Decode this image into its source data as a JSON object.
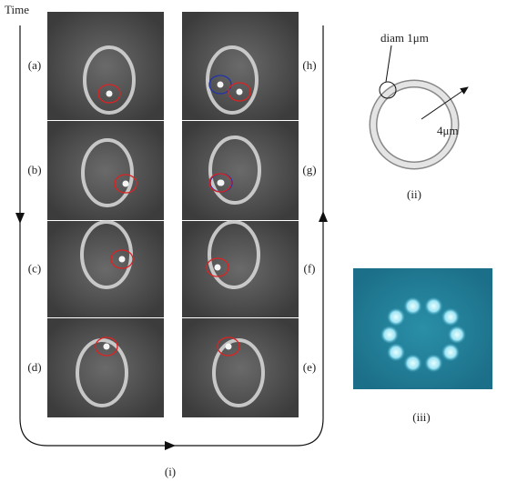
{
  "time_label": "Time",
  "panels": {
    "left": [
      "(a)",
      "(b)",
      "(c)",
      "(d)"
    ],
    "right": [
      "(h)",
      "(g)",
      "(f)",
      "(e)"
    ]
  },
  "figure_labels": {
    "sequence": "(i)",
    "schematic": "(ii)",
    "fluorescence": "(iii)"
  },
  "annotations": {
    "diameter": "diam 1μm",
    "radius": "4μm"
  }
}
